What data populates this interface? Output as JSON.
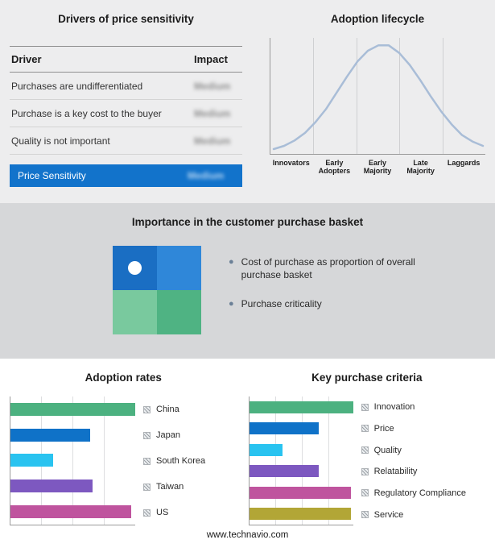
{
  "colors": {
    "accent_blue": "#1273cb",
    "curve": "#a9bdd7",
    "green": "#4cb180",
    "blue": "#0f72c8",
    "cyan": "#29c3f0",
    "purple": "#7d58c0",
    "magenta": "#bf549e",
    "olive": "#b2a636"
  },
  "icons": {
    "bullet": "●"
  },
  "drivers": {
    "title": "Drivers of price sensitivity",
    "col_driver": "Driver",
    "col_impact": "Impact",
    "rows": [
      {
        "label": "Purchases are undifferentiated",
        "impact": "Medium"
      },
      {
        "label": "Purchase is a key cost to the buyer",
        "impact": "Medium"
      },
      {
        "label": "Quality is not important",
        "impact": "Medium"
      }
    ],
    "summary": {
      "label": "Price Sensitivity",
      "impact": "Medium"
    }
  },
  "basket": {
    "title": "Importance in the customer purchase basket",
    "bullets": [
      "Cost of purchase as proportion of overall purchase basket",
      "Purchase criticality"
    ],
    "quadrant": {
      "tl": "#1a6ec3",
      "tr": "#2f87d9",
      "bl": "#79c99e",
      "br": "#4fb383"
    }
  },
  "chart_data": [
    {
      "type": "line",
      "title": "Adoption lifecycle",
      "categories": [
        "Innovators",
        "Early Adopters",
        "Early Majority",
        "Late Majority",
        "Laggards"
      ],
      "curve": [
        [
          0,
          3
        ],
        [
          5,
          6
        ],
        [
          10,
          11
        ],
        [
          15,
          18
        ],
        [
          20,
          28
        ],
        [
          25,
          40
        ],
        [
          30,
          55
        ],
        [
          35,
          70
        ],
        [
          40,
          84
        ],
        [
          45,
          94
        ],
        [
          50,
          99
        ],
        [
          55,
          99
        ],
        [
          60,
          92
        ],
        [
          65,
          81
        ],
        [
          70,
          67
        ],
        [
          75,
          52
        ],
        [
          80,
          38
        ],
        [
          85,
          26
        ],
        [
          90,
          16
        ],
        [
          95,
          10
        ],
        [
          100,
          6
        ]
      ],
      "color": "#a9bdd7",
      "grid": "vertical separators between the five adopter stages",
      "ylim": [
        0,
        100
      ]
    },
    {
      "type": "bar",
      "title": "Adoption rates",
      "orientation": "horizontal",
      "categories": [
        "China",
        "Japan",
        "South Korea",
        "Taiwan",
        "US"
      ],
      "values": [
        100,
        64,
        34,
        66,
        97
      ],
      "colors": [
        "#4cb180",
        "#0f72c8",
        "#29c3f0",
        "#7d58c0",
        "#bf549e"
      ],
      "xlim": [
        0,
        100
      ],
      "grid": "vertical gridlines",
      "legend_position": "right"
    },
    {
      "type": "bar",
      "title": "Key purchase criteria",
      "orientation": "horizontal",
      "categories": [
        "Innovation",
        "Price",
        "Quality",
        "Relatability",
        "Regulatory Compliance",
        "Service"
      ],
      "values": [
        100,
        67,
        32,
        67,
        98,
        98
      ],
      "colors": [
        "#4cb180",
        "#0f72c8",
        "#29c3f0",
        "#7d58c0",
        "#bf549e",
        "#b2a636"
      ],
      "xlim": [
        0,
        100
      ],
      "grid": "vertical gridlines",
      "legend_position": "right"
    }
  ],
  "footer": "www.technavio.com"
}
